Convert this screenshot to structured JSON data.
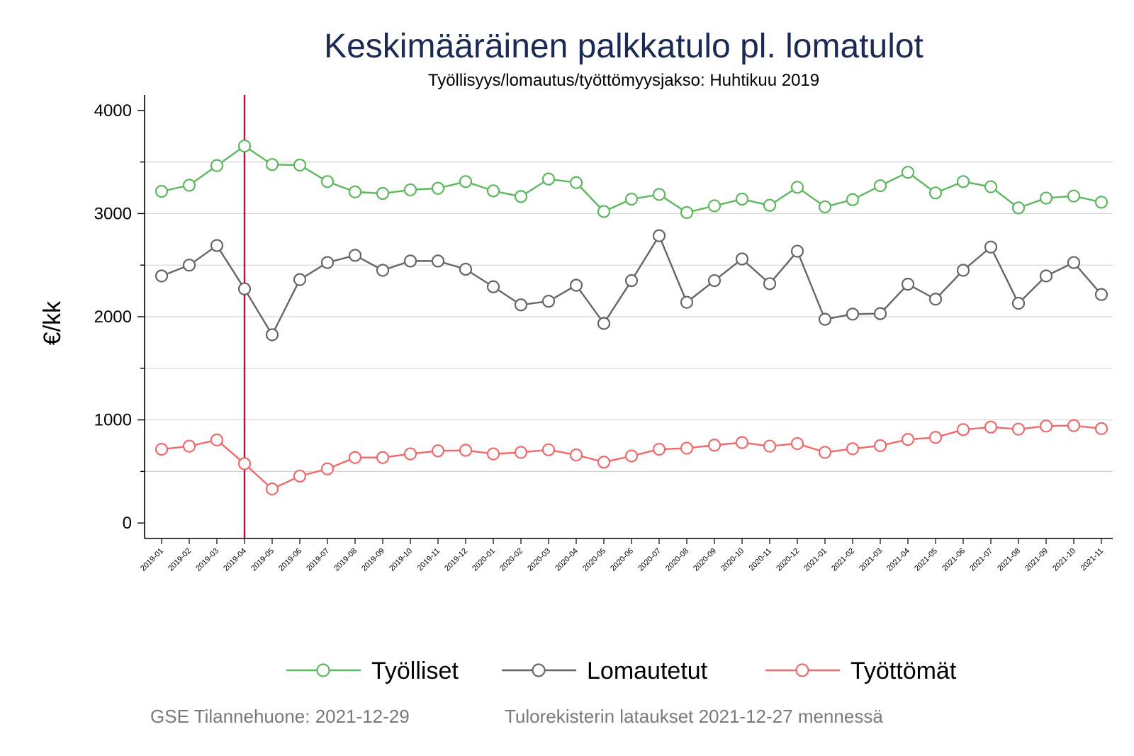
{
  "chart_data": {
    "type": "line",
    "title": "Keskimääräinen palkkatulo pl. lomatulot",
    "subtitle": "Työllisyys/lomautus/työttömyysjakso: Huhtikuu 2019",
    "ylabel": "€/kk",
    "xlabel": "",
    "ylim": [
      -150,
      4150
    ],
    "yticks": [
      0,
      1000,
      2000,
      3000,
      4000
    ],
    "grid": "horizontal",
    "legend_position": "bottom",
    "reference_line": {
      "x": "2019-04",
      "color": "#b0103a"
    },
    "categories": [
      "2019-01",
      "2019-02",
      "2019-03",
      "2019-04",
      "2019-05",
      "2019-06",
      "2019-07",
      "2019-08",
      "2019-09",
      "2019-10",
      "2019-11",
      "2019-12",
      "2020-01",
      "2020-02",
      "2020-03",
      "2020-04",
      "2020-05",
      "2020-06",
      "2020-07",
      "2020-08",
      "2020-09",
      "2020-10",
      "2020-11",
      "2020-12",
      "2021-01",
      "2021-02",
      "2021-03",
      "2021-04",
      "2021-05",
      "2021-06",
      "2021-07",
      "2021-08",
      "2021-09",
      "2021-10",
      "2021-11"
    ],
    "series": [
      {
        "name": "Työlliset",
        "color": "#5cb85c",
        "values": [
          3215,
          3275,
          3465,
          3655,
          3475,
          3470,
          3310,
          3210,
          3195,
          3230,
          3245,
          3310,
          3220,
          3165,
          3335,
          3300,
          3020,
          3140,
          3185,
          3010,
          3075,
          3140,
          3080,
          3255,
          3065,
          3135,
          3270,
          3400,
          3200,
          3310,
          3260,
          3055,
          3150,
          3170,
          3110
        ]
      },
      {
        "name": "Lomautetut",
        "color": "#666666",
        "values": [
          2395,
          2500,
          2690,
          2270,
          1825,
          2360,
          2525,
          2595,
          2450,
          2540,
          2540,
          2460,
          2290,
          2115,
          2150,
          2305,
          1935,
          2350,
          2785,
          2140,
          2350,
          2560,
          2320,
          2635,
          1975,
          2025,
          2030,
          2315,
          2170,
          2450,
          2675,
          2130,
          2395,
          2525,
          2215
        ]
      },
      {
        "name": "Työttömät",
        "color": "#f06a6a",
        "values": [
          715,
          745,
          805,
          575,
          330,
          455,
          525,
          635,
          635,
          670,
          700,
          705,
          670,
          685,
          710,
          660,
          590,
          650,
          715,
          725,
          755,
          780,
          745,
          770,
          685,
          720,
          750,
          810,
          830,
          905,
          930,
          910,
          940,
          945,
          915
        ]
      }
    ]
  },
  "footer": {
    "left": "GSE Tilannehuone: 2021-12-29",
    "right": "Tulorekisterin lataukset 2021-12-27 mennessä"
  }
}
